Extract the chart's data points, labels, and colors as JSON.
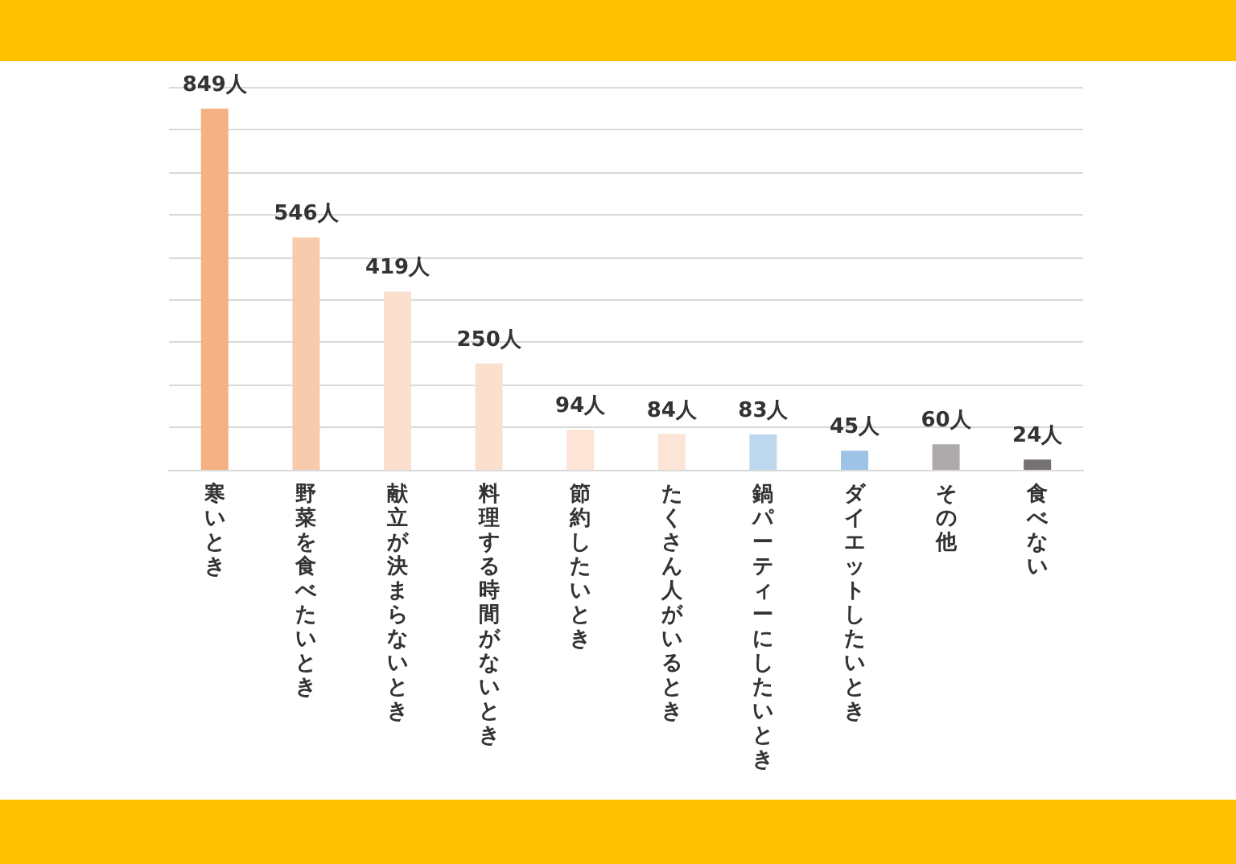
{
  "chart_data": {
    "type": "bar",
    "categories": [
      "寒いとき",
      "野菜を食べたいとき",
      "献立が決まらないとき",
      "料理する時間がないとき",
      "節約したいとき",
      "たくさん人がいるとき",
      "鍋パーティーにしたいとき",
      "ダイエットしたいとき",
      "その他",
      "食べない"
    ],
    "values": [
      849,
      546,
      419,
      250,
      94,
      84,
      83,
      45,
      60,
      24
    ],
    "value_labels": [
      "849人",
      "546人",
      "419人",
      "250人",
      "94人",
      "84人",
      "83人",
      "45人",
      "60人",
      "24人"
    ],
    "colors": [
      "#f4b183",
      "#f8cbad",
      "#fbe0d0",
      "#fbe0d0",
      "#fce4d6",
      "#fce4d6",
      "#bdd7ee",
      "#9dc3e6",
      "#aeaaaa",
      "#767171"
    ],
    "ylim": [
      0,
      900
    ],
    "yticks": [
      {
        "value": 0,
        "label": null
      },
      {
        "value": 100,
        "label": null
      },
      {
        "value": 200,
        "label": null
      },
      {
        "value": 300,
        "label": null
      },
      {
        "value": 400,
        "label": null
      },
      {
        "value": 500,
        "label": null
      },
      {
        "value": 600,
        "label": null
      },
      {
        "value": 700,
        "label": null
      },
      {
        "value": 800,
        "label": null
      },
      {
        "value": 900,
        "label": null
      }
    ],
    "grid": "y",
    "tick_labels": "x"
  }
}
